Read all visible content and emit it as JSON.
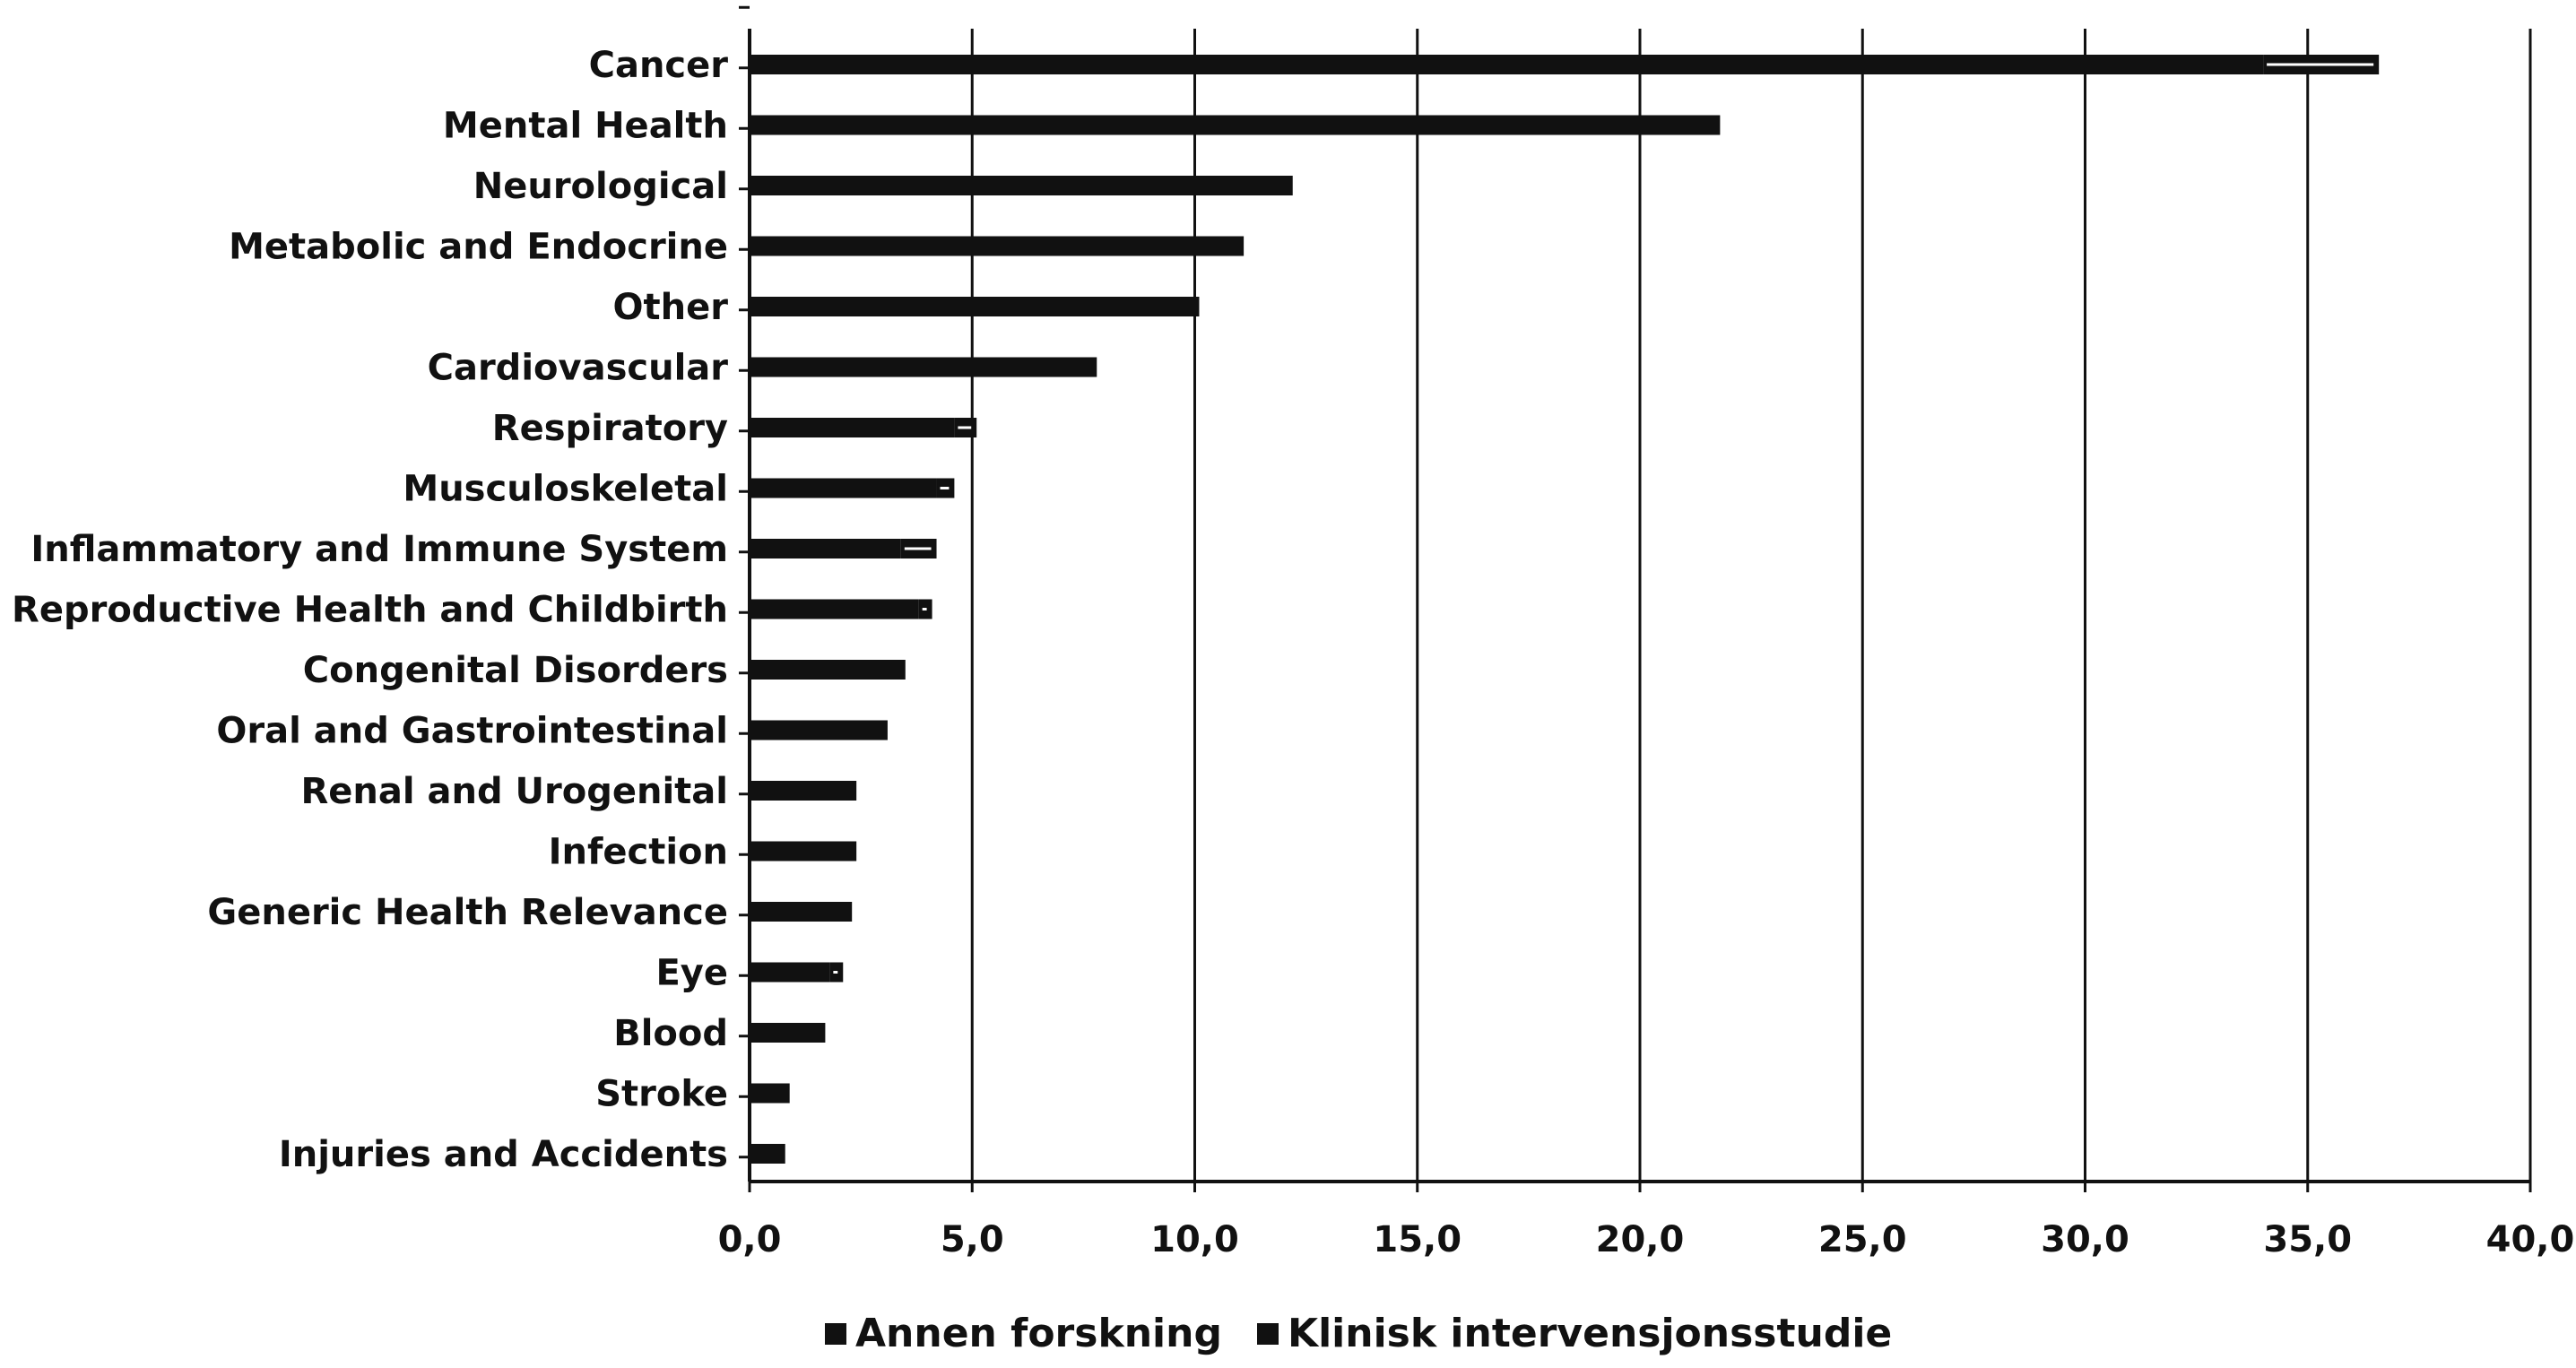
{
  "chart_data": {
    "type": "bar",
    "orientation": "horizontal",
    "stacked": true,
    "categories": [
      "Cancer",
      "Mental Health",
      "Neurological",
      "Metabolic and Endocrine",
      "Other",
      "Cardiovascular",
      "Respiratory",
      "Musculoskeletal",
      "Inflammatory and Immune System",
      "Reproductive Health and Childbirth",
      "Congenital Disorders",
      "Oral and Gastrointestinal",
      "Renal and Urogenital",
      "Infection",
      "Generic Health Relevance",
      "Eye",
      "Blood",
      "Stroke",
      "Injuries and Accidents"
    ],
    "series": [
      {
        "name": "Annen forskning",
        "color": "#111111",
        "values": [
          34.0,
          21.8,
          12.2,
          11.1,
          10.1,
          7.8,
          4.6,
          4.2,
          3.4,
          3.8,
          3.5,
          3.1,
          2.4,
          2.4,
          2.3,
          1.8,
          1.7,
          0.9,
          0.8
        ]
      },
      {
        "name": "Klinisk intervensjonsstudie",
        "color": "#111111",
        "values": [
          2.6,
          0.0,
          0.0,
          0.0,
          0.0,
          0.0,
          0.5,
          0.4,
          0.8,
          0.3,
          0.0,
          0.0,
          0.0,
          0.0,
          0.0,
          0.3,
          0.0,
          0.0,
          0.0
        ]
      }
    ],
    "xlim": [
      0,
      40
    ],
    "xticks": [
      "0,0",
      "5,0",
      "10,0",
      "15,0",
      "20,0",
      "25,0",
      "30,0",
      "35,0",
      "40,0"
    ],
    "grid": "vertical",
    "legend": "bottom",
    "title": "",
    "xlabel": "",
    "ylabel": ""
  }
}
